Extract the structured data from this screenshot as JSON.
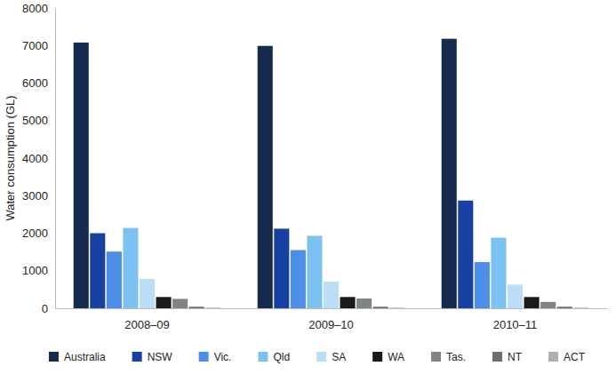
{
  "chart_data": {
    "type": "bar",
    "y_label": "Water consumption (GL)",
    "categories": [
      "2008–09",
      "2009–10",
      "2010–11"
    ],
    "series": [
      {
        "name": "Australia",
        "color": "#16294f",
        "values": [
          7080,
          6990,
          7180
        ]
      },
      {
        "name": "NSW",
        "color": "#1641a0",
        "values": [
          2000,
          2120,
          2870
        ]
      },
      {
        "name": "Vic.",
        "color": "#4d8ee8",
        "values": [
          1510,
          1550,
          1230
        ]
      },
      {
        "name": "Qld",
        "color": "#7cc2f0",
        "values": [
          2140,
          1930,
          1880
        ]
      },
      {
        "name": "SA",
        "color": "#b9def6",
        "values": [
          780,
          710,
          630
        ]
      },
      {
        "name": "WA",
        "color": "#1a1a1a",
        "values": [
          300,
          300,
          300
        ]
      },
      {
        "name": "Tas.",
        "color": "#808484",
        "values": [
          250,
          260,
          170
        ]
      },
      {
        "name": "NT",
        "color": "#6c706b",
        "values": [
          40,
          40,
          40
        ]
      },
      {
        "name": "ACT",
        "color": "#a9b1b1",
        "values": [
          15,
          15,
          15
        ]
      }
    ],
    "ylim": [
      0,
      8000
    ],
    "yticks": [
      0,
      1000,
      2000,
      3000,
      4000,
      5000,
      6000,
      7000,
      8000
    ],
    "grid": false,
    "legend": "bottom"
  }
}
